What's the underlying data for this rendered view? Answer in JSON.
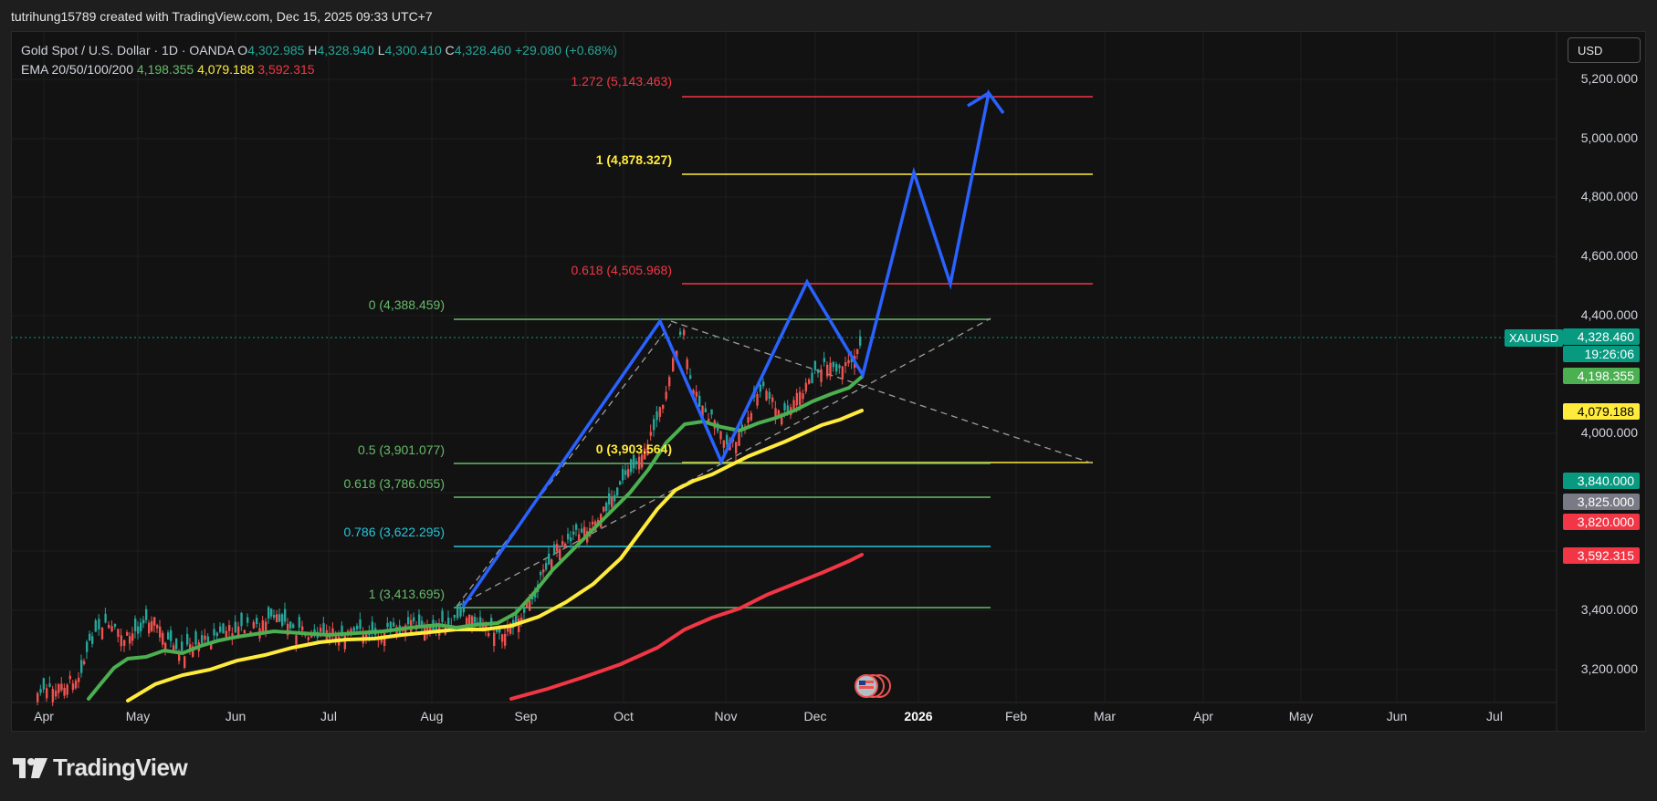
{
  "header": {
    "caption": "tutrihung15789 created with TradingView.com, Dec 15, 2025 09:33 UTC+7"
  },
  "legend": {
    "symbol_line": "Gold Spot / U.S. Dollar · 1D · OANDA",
    "o_label": "O",
    "o_value": "4,302.985",
    "h_label": "H",
    "h_value": "4,328.940",
    "l_label": "L",
    "l_value": "4,300.410",
    "c_label": "C",
    "c_value": "4,328.460",
    "change": "+29.080 (+0.68%)",
    "ema_label": "EMA 20/50/100/200",
    "ema20": "4,198.355",
    "ema50": "4,079.188",
    "ema200": "3,592.315"
  },
  "toolbar": {
    "currency": "USD"
  },
  "price_axis": [
    "5,200.000",
    "5,000.000",
    "4,800.000",
    "4,600.000",
    "4,400.000",
    "4,000.000",
    "3,400.000",
    "3,200.000"
  ],
  "price_tags": {
    "symbol": "XAUUSD",
    "last_price": "4,328.460",
    "countdown": "19:26:06",
    "ema20": "4,198.355",
    "ema50": "4,079.188",
    "level_a": "3,840.000",
    "level_b": "3,825.000",
    "level_c": "3,820.000",
    "ema200": "3,592.315"
  },
  "time_axis": [
    "Apr",
    "May",
    "Jun",
    "Jul",
    "Aug",
    "Sep",
    "Oct",
    "Nov",
    "Dec",
    "2026",
    "Feb",
    "Mar",
    "Apr",
    "May",
    "Jun",
    "Jul"
  ],
  "fib_labels": {
    "ext_1272": "1.272 (5,143.463)",
    "ext_1": "1 (4,878.327)",
    "ext_0618": "0.618 (4,505.968)",
    "ext_0": "0 (3,903.564)",
    "ret_0": "0 (4,388.459)",
    "ret_05": "0.5 (3,901.077)",
    "ret_0618": "0.618 (3,786.055)",
    "ret_0786": "0.786 (3,622.295)",
    "ret_1": "1 (3,413.695)"
  },
  "footer": {
    "brand": "TradingView"
  },
  "colors": {
    "bull": "#26a69a",
    "bear": "#ef5350",
    "ema20": "#4caf50",
    "ema50": "#ffeb3b",
    "ema200": "#f23645",
    "projection": "#2962ff",
    "fib_green": "#66bb6a",
    "fib_yellow": "#ffeb3b",
    "fib_red": "#f23645",
    "fib_cyan": "#26c6da"
  }
}
